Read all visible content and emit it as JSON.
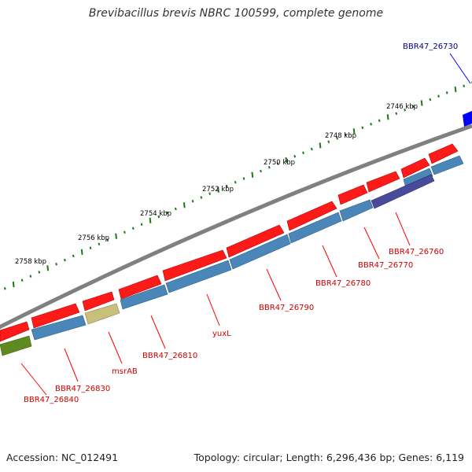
{
  "title": "Brevibacillus brevis NBRC 100599, complete genome",
  "accession": "Accession: NC_012491",
  "summary": "Topology: circular; Length: 6,296,436 bp; Genes: 6,119",
  "colors": {
    "backbone": "#808080",
    "ruler": "#1a7a1a",
    "gene_red": "#ff1a1a",
    "gene_blue": "#4a86b8",
    "gene_olive": "#5f8a1f",
    "gene_khaki": "#c8c07a",
    "gene_purple": "#4a4a9a",
    "highlight_blue": "#0000ff",
    "label_red": "#cc0000",
    "label_blue": "#000080"
  },
  "ruler_labels": [
    "2746 kbp",
    "2748 kbp",
    "2750 kbp",
    "2752 kbp",
    "2754 kbp",
    "2756 kbp",
    "2758 kbp"
  ],
  "gene_labels": [
    "BBR47_26730",
    "BBR47_26760",
    "BBR47_26770",
    "BBR47_26780",
    "BBR47_26790",
    "yuxL",
    "BBR47_26810",
    "msrAB",
    "BBR47_26830",
    "BBR47_26840"
  ]
}
